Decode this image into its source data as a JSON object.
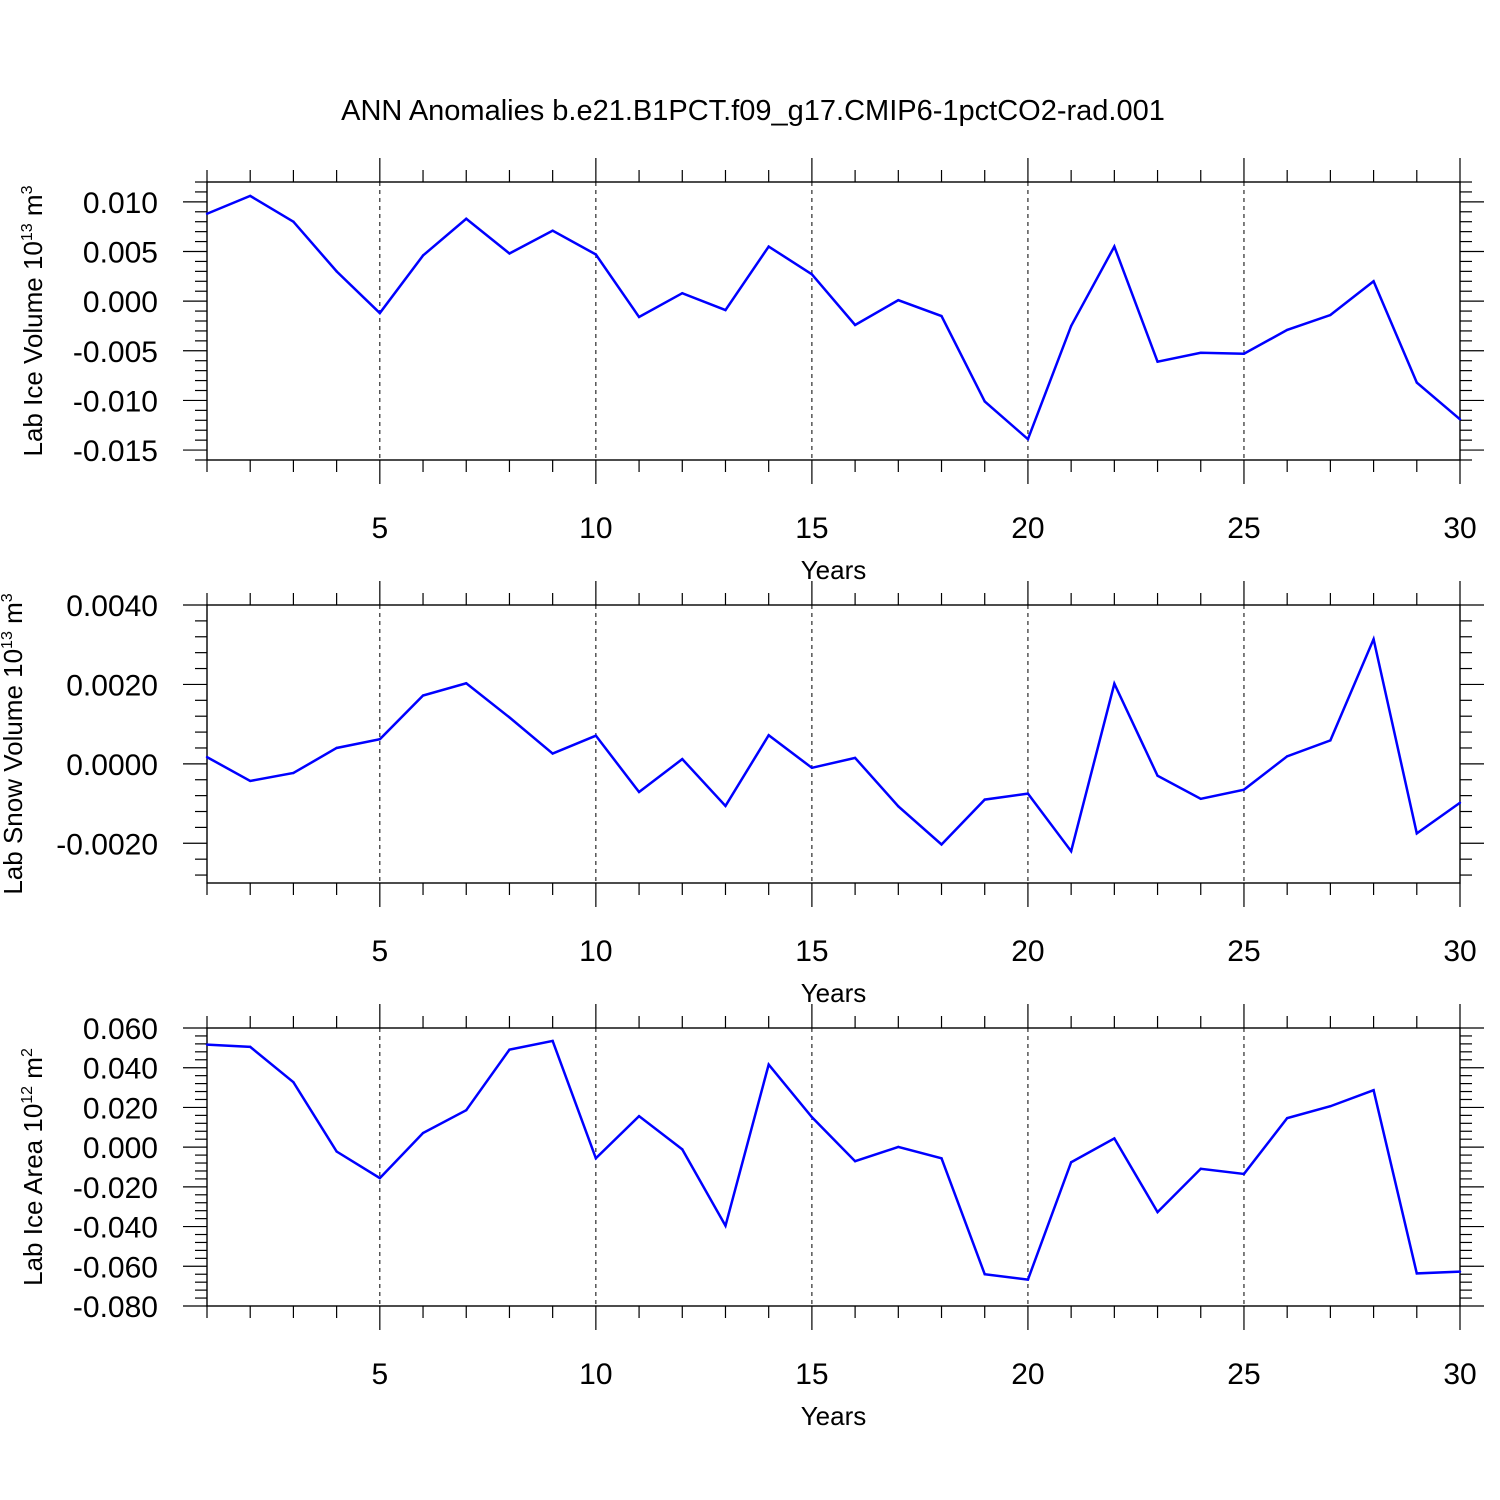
{
  "title": "ANN Anomalies b.e21.B1PCT.f09_g17.CMIP6-1pctCO2-rad.001",
  "colors": {
    "line": "#0000ff",
    "axis": "#000000",
    "grid": "#000000"
  },
  "chart_data": [
    {
      "type": "line",
      "ylabel": "Lab Ice Volume 10",
      "ylabel_exp": "13",
      "ylabel_unit": "m",
      "ylabel_unit_exp": "3",
      "xlabel": "Years",
      "xlim": [
        1,
        30
      ],
      "ylim": [
        -0.016,
        0.012
      ],
      "x_ticks": [
        5,
        10,
        15,
        20,
        25,
        30
      ],
      "x_tick_labels": [
        "5",
        "10",
        "15",
        "20",
        "25",
        "30"
      ],
      "y_ticks": [
        -0.015,
        -0.01,
        -0.005,
        0.0,
        0.005,
        0.01
      ],
      "y_tick_labels": [
        "-0.015",
        "-0.010",
        "-0.005",
        "0.000",
        "0.005",
        "0.010"
      ],
      "y_minor_step": 0.001,
      "vertical_grid": "dashed at major x ticks",
      "x": [
        1,
        2,
        3,
        4,
        5,
        6,
        7,
        8,
        9,
        10,
        11,
        12,
        13,
        14,
        15,
        16,
        17,
        18,
        19,
        20,
        21,
        22,
        23,
        24,
        25,
        26,
        27,
        28,
        29,
        30
      ],
      "series": [
        {
          "values": [
            0.0088,
            0.0106,
            0.008,
            0.003,
            -0.0012,
            0.0046,
            0.0083,
            0.0048,
            0.0071,
            0.0047,
            -0.0016,
            0.0008,
            -0.0009,
            0.0055,
            0.0027,
            -0.0024,
            0.0001,
            -0.0015,
            -0.0101,
            -0.0139,
            -0.0025,
            0.0055,
            -0.0061,
            -0.0052,
            -0.0053,
            -0.0029,
            -0.0014,
            0.002,
            -0.0082,
            -0.0119
          ]
        }
      ]
    },
    {
      "type": "line",
      "ylabel": "Lab Snow Volume 10",
      "ylabel_exp": "13",
      "ylabel_unit": "m",
      "ylabel_unit_exp": "3",
      "xlabel": "Years",
      "xlim": [
        1,
        30
      ],
      "ylim": [
        -0.003,
        0.004
      ],
      "x_ticks": [
        5,
        10,
        15,
        20,
        25,
        30
      ],
      "x_tick_labels": [
        "5",
        "10",
        "15",
        "20",
        "25",
        "30"
      ],
      "y_ticks": [
        -0.002,
        0.0,
        0.002,
        0.004
      ],
      "y_tick_labels": [
        "-0.0020",
        "0.0000",
        "0.0020",
        "0.0040"
      ],
      "y_minor_step": 0.0004,
      "vertical_grid": "dashed at major x ticks",
      "x": [
        1,
        2,
        3,
        4,
        5,
        6,
        7,
        8,
        9,
        10,
        11,
        12,
        13,
        14,
        15,
        16,
        17,
        18,
        19,
        20,
        21,
        22,
        23,
        24,
        25,
        26,
        27,
        28,
        29,
        30
      ],
      "series": [
        {
          "values": [
            0.00017,
            -0.00043,
            -0.00023,
            0.0004,
            0.00062,
            0.00172,
            0.00203,
            0.00117,
            0.00026,
            0.00071,
            -0.00071,
            0.00012,
            -0.00106,
            0.00072,
            -0.0001,
            0.00015,
            -0.00107,
            -0.00203,
            -0.0009,
            -0.00075,
            -0.0022,
            0.00202,
            -0.0003,
            -0.00088,
            -0.00065,
            0.00019,
            0.00059,
            0.00314,
            -0.00175,
            -0.00098
          ]
        }
      ]
    },
    {
      "type": "line",
      "ylabel": "Lab Ice Area 10",
      "ylabel_exp": "12",
      "ylabel_unit": "m",
      "ylabel_unit_exp": "2",
      "xlabel": "Years",
      "xlim": [
        1,
        30
      ],
      "ylim": [
        -0.08,
        0.06
      ],
      "x_ticks": [
        5,
        10,
        15,
        20,
        25,
        30
      ],
      "x_tick_labels": [
        "5",
        "10",
        "15",
        "20",
        "25",
        "30"
      ],
      "y_ticks": [
        -0.08,
        -0.06,
        -0.04,
        -0.02,
        0.0,
        0.02,
        0.04,
        0.06
      ],
      "y_tick_labels": [
        "-0.080",
        "-0.060",
        "-0.040",
        "-0.020",
        "0.000",
        "0.020",
        "0.040",
        "0.060"
      ],
      "y_minor_step": 0.004,
      "vertical_grid": "dashed at major x ticks",
      "x": [
        1,
        2,
        3,
        4,
        5,
        6,
        7,
        8,
        9,
        10,
        11,
        12,
        13,
        14,
        15,
        16,
        17,
        18,
        19,
        20,
        21,
        22,
        23,
        24,
        25,
        26,
        27,
        28,
        29,
        30
      ],
      "series": [
        {
          "values": [
            0.0516,
            0.0505,
            0.0327,
            -0.0022,
            -0.0156,
            0.0071,
            0.0186,
            0.0491,
            0.0535,
            -0.0056,
            0.0156,
            -0.0011,
            -0.0396,
            0.0416,
            0.0151,
            -0.0071,
            0.0001,
            -0.0056,
            -0.064,
            -0.0667,
            -0.0076,
            0.0044,
            -0.0327,
            -0.0109,
            -0.0135,
            0.0146,
            0.0206,
            0.0287,
            -0.0636,
            -0.0627
          ]
        }
      ]
    }
  ]
}
